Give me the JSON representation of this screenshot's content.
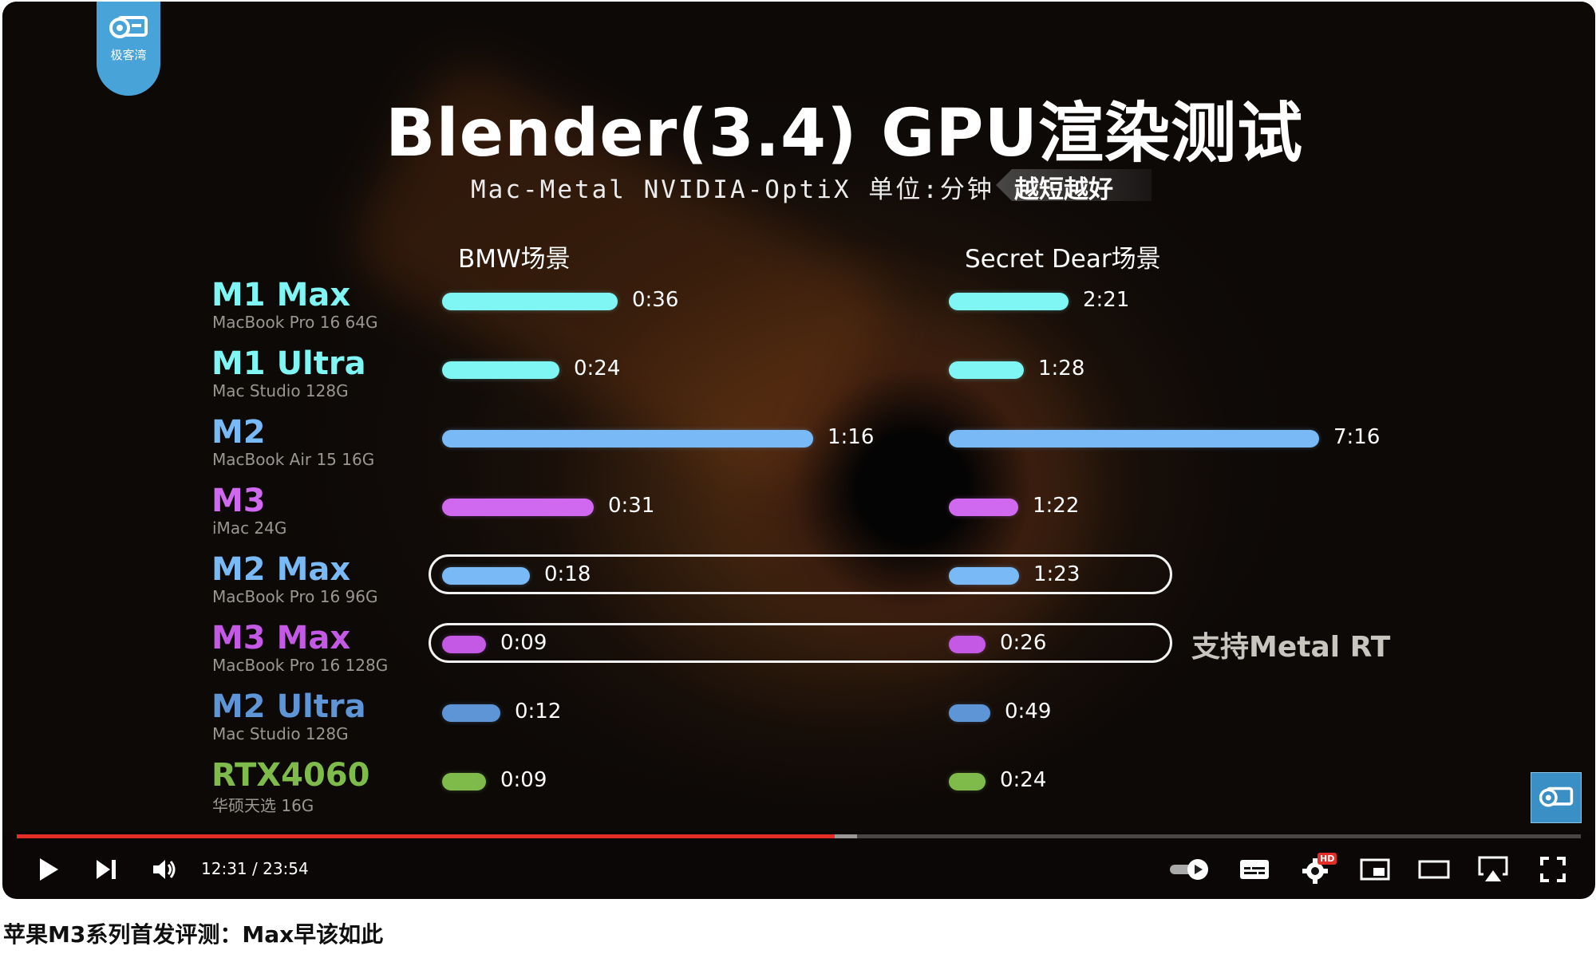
{
  "logo": {
    "text": "极客湾"
  },
  "video": {
    "title": "Blender(3.4) GPU渲染测试",
    "subtitle": "Mac-Metal  NVIDIA-OptiX  单位:分钟",
    "tag": "越短越好",
    "col_left": "BMW场景",
    "col_right": "Secret Dear场景",
    "note": "支持Metal RT"
  },
  "chart_data": {
    "type": "bar",
    "title": "Blender(3.4) GPU渲染测试",
    "subtitle": "Mac-Metal  NVIDIA-OptiX  单位:分钟",
    "categories": [
      "M1 Max",
      "M1 Ultra",
      "M2",
      "M3",
      "M2 Max",
      "M3 Max",
      "M2 Ultra",
      "RTX4060"
    ],
    "category_subtitles": [
      "MacBook Pro 16 64G",
      "Mac Studio 128G",
      "MacBook Air 15 16G",
      "iMac 24G",
      "MacBook Pro 16 96G",
      "MacBook Pro 16 128G",
      "Mac Studio 128G",
      "华硕天选 16G"
    ],
    "category_colors": [
      "#7ff6f3",
      "#7ff6f3",
      "#79b9f5",
      "#d069ef",
      "#79b9f5",
      "#c459e6",
      "#5d95d6",
      "#7fbb4a"
    ],
    "series": [
      {
        "name": "BMW场景",
        "labels": [
          "0:36",
          "0:24",
          "1:16",
          "0:31",
          "0:18",
          "0:09",
          "0:12",
          "0:09"
        ],
        "values": [
          36,
          24,
          76,
          31,
          18,
          9,
          12,
          9
        ]
      },
      {
        "name": "Secret Dear场景",
        "labels": [
          "2:21",
          "1:28",
          "7:16",
          "1:22",
          "1:23",
          "0:26",
          "0:49",
          "0:24"
        ],
        "values": [
          141,
          88,
          436,
          82,
          83,
          26,
          49,
          24
        ]
      }
    ],
    "highlighted": [
      "M2 Max",
      "M3 Max"
    ]
  },
  "controls": {
    "time": "12:31 / 23:54",
    "progress_fraction": 0.523,
    "buffer_fraction": 0.537,
    "settings_badge": "HD"
  },
  "page": {
    "video_title": "苹果M3系列首发评测：Max早该如此"
  }
}
